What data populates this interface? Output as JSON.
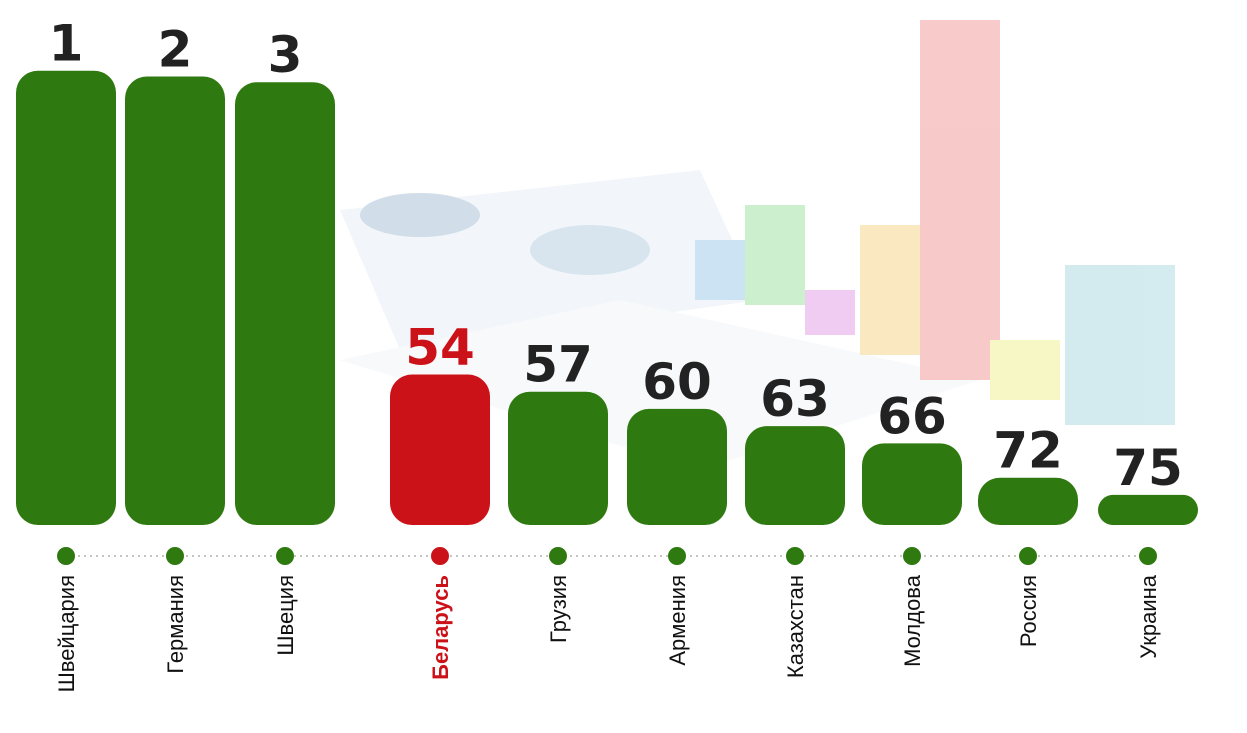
{
  "chart_data": {
    "type": "bar",
    "categories": [
      "Швейцария",
      "Германия",
      "Швеция",
      "Беларусь",
      "Грузия",
      "Армения",
      "Казахстан",
      "Молдова",
      "Россия",
      "Украина"
    ],
    "values": [
      1,
      2,
      3,
      54,
      57,
      60,
      63,
      66,
      72,
      75
    ],
    "colors": [
      "#2f7a10",
      "#2f7a10",
      "#2f7a10",
      "#cc1219",
      "#2f7a10",
      "#2f7a10",
      "#2f7a10",
      "#2f7a10",
      "#2f7a10",
      "#2f7a10"
    ]
  }
}
